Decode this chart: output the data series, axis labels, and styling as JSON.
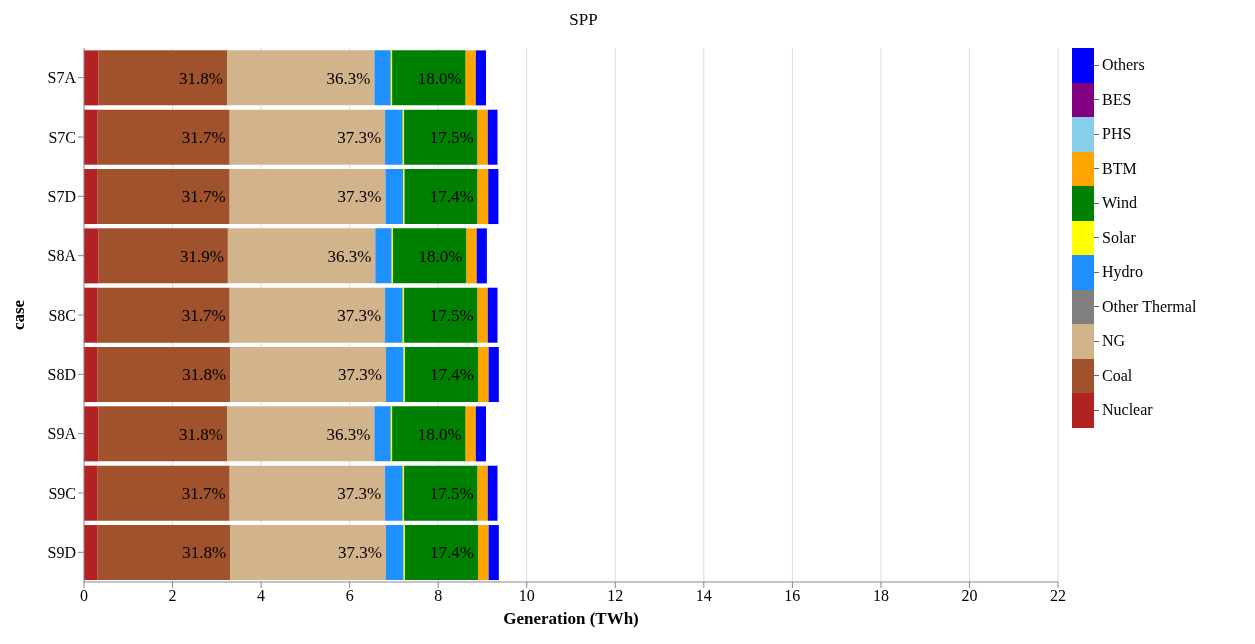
{
  "chart_data": {
    "type": "bar",
    "orientation": "horizontal",
    "stacked": true,
    "title": "SPP",
    "xlabel": "Generation (TWh)",
    "ylabel": "case",
    "categories": [
      "S7A",
      "S7C",
      "S7D",
      "S8A",
      "S8C",
      "S8D",
      "S9A",
      "S9C",
      "S9D"
    ],
    "series": [
      {
        "name": "Nuclear",
        "color": "#b22222",
        "values": [
          0.33,
          0.31,
          0.31,
          0.33,
          0.31,
          0.31,
          0.33,
          0.31,
          0.31
        ]
      },
      {
        "name": "Coal",
        "color": "#a0522d",
        "values": [
          2.9,
          2.98,
          2.98,
          2.92,
          2.98,
          2.99,
          2.9,
          2.98,
          2.99
        ]
      },
      {
        "name": "NG",
        "color": "#d2b48c",
        "values": [
          3.33,
          3.51,
          3.52,
          3.33,
          3.51,
          3.52,
          3.33,
          3.51,
          3.52
        ]
      },
      {
        "name": "Other Thermal",
        "color": "#808080",
        "values": [
          0,
          0,
          0,
          0,
          0,
          0,
          0,
          0,
          0
        ]
      },
      {
        "name": "Hydro",
        "color": "#1e90ff",
        "values": [
          0.37,
          0.4,
          0.4,
          0.37,
          0.4,
          0.4,
          0.37,
          0.4,
          0.4
        ]
      },
      {
        "name": "Solar",
        "color": "#ffff00",
        "values": [
          0.03,
          0.03,
          0.03,
          0.03,
          0.03,
          0.03,
          0.03,
          0.03,
          0.03
        ]
      },
      {
        "name": "Wind",
        "color": "#008000",
        "values": [
          1.66,
          1.66,
          1.65,
          1.66,
          1.66,
          1.65,
          1.66,
          1.66,
          1.65
        ]
      },
      {
        "name": "BTM",
        "color": "#ffa500",
        "values": [
          0.23,
          0.23,
          0.24,
          0.23,
          0.23,
          0.24,
          0.23,
          0.23,
          0.24
        ]
      },
      {
        "name": "PHS",
        "color": "#87ceeb",
        "values": [
          0,
          0,
          0,
          0,
          0,
          0,
          0,
          0,
          0
        ]
      },
      {
        "name": "BES",
        "color": "#800080",
        "values": [
          0,
          0,
          0,
          0,
          0,
          0,
          0,
          0,
          0
        ]
      },
      {
        "name": "Others",
        "color": "#0000ff",
        "values": [
          0.23,
          0.22,
          0.23,
          0.23,
          0.22,
          0.23,
          0.23,
          0.22,
          0.23
        ]
      }
    ],
    "annotations": [
      {
        "text": "31.8%",
        "x": 3.23,
        "y": "S7A"
      },
      {
        "text": "36.3%",
        "x": 6.56,
        "y": "S7A"
      },
      {
        "text": "18.0%",
        "x": 8.62,
        "y": "S7A"
      },
      {
        "text": "31.7%",
        "x": 3.29,
        "y": "S7C"
      },
      {
        "text": "37.3%",
        "x": 6.8,
        "y": "S7C"
      },
      {
        "text": "17.5%",
        "x": 8.89,
        "y": "S7C"
      },
      {
        "text": "31.7%",
        "x": 3.29,
        "y": "S7D"
      },
      {
        "text": "37.3%",
        "x": 6.81,
        "y": "S7D"
      },
      {
        "text": "17.4%",
        "x": 8.89,
        "y": "S7D"
      },
      {
        "text": "31.9%",
        "x": 3.25,
        "y": "S8A"
      },
      {
        "text": "36.3%",
        "x": 6.58,
        "y": "S8A"
      },
      {
        "text": "18.0%",
        "x": 8.64,
        "y": "S8A"
      },
      {
        "text": "31.7%",
        "x": 3.29,
        "y": "S8C"
      },
      {
        "text": "37.3%",
        "x": 6.8,
        "y": "S8C"
      },
      {
        "text": "17.5%",
        "x": 8.89,
        "y": "S8C"
      },
      {
        "text": "31.8%",
        "x": 3.3,
        "y": "S8D"
      },
      {
        "text": "37.3%",
        "x": 6.82,
        "y": "S8D"
      },
      {
        "text": "17.4%",
        "x": 8.9,
        "y": "S8D"
      },
      {
        "text": "31.8%",
        "x": 3.23,
        "y": "S9A"
      },
      {
        "text": "36.3%",
        "x": 6.56,
        "y": "S9A"
      },
      {
        "text": "18.0%",
        "x": 8.62,
        "y": "S9A"
      },
      {
        "text": "31.7%",
        "x": 3.29,
        "y": "S9C"
      },
      {
        "text": "37.3%",
        "x": 6.8,
        "y": "S9C"
      },
      {
        "text": "17.5%",
        "x": 8.89,
        "y": "S9C"
      },
      {
        "text": "31.8%",
        "x": 3.3,
        "y": "S9D"
      },
      {
        "text": "37.3%",
        "x": 6.82,
        "y": "S9D"
      },
      {
        "text": "17.4%",
        "x": 8.9,
        "y": "S9D"
      }
    ],
    "xlim": [
      0,
      22
    ],
    "xticks": [
      0,
      2,
      4,
      6,
      8,
      10,
      12,
      14,
      16,
      18,
      20,
      22
    ],
    "grid": "x",
    "legend": "right"
  }
}
